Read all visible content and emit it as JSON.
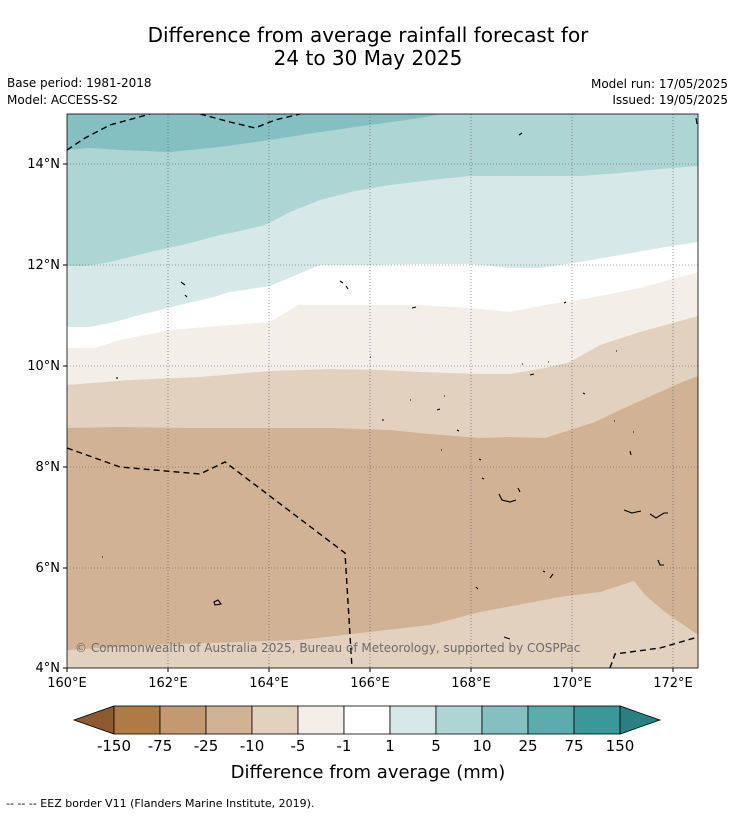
{
  "title": {
    "line1": "Difference from average rainfall forecast for",
    "line2": "24 to 30 May 2025"
  },
  "meta": {
    "base_period": "Base period: 1981-2018",
    "model": "Model: ACCESS-S2",
    "model_run": "Model run: 17/05/2025",
    "issued": "Issued: 19/05/2025"
  },
  "map": {
    "lon_ticks": [
      "160°E",
      "162°E",
      "164°E",
      "166°E",
      "168°E",
      "170°E",
      "172°E"
    ],
    "lat_ticks": [
      "14°N",
      "12°N",
      "10°N",
      "8°N",
      "6°N",
      "4°N"
    ],
    "credit": "© Commonwealth of Australia 2025, Bureau of Meteorology, supported by COSPPac"
  },
  "colorbar": {
    "labels": [
      "-150",
      "-75",
      "-25",
      "-10",
      "-5",
      "-1",
      "1",
      "5",
      "10",
      "25",
      "75",
      "150"
    ],
    "colors": [
      "#8c5a2e",
      "#b07a44",
      "#c39a70",
      "#d2b294",
      "#e3d1c0",
      "#f4eee9",
      "#ffffff",
      "#d6e8e7",
      "#acd5d4",
      "#84c0c1",
      "#5aacad",
      "#3a9898",
      "#2a7f80"
    ],
    "title": "Difference from average (mm)"
  },
  "footer": {
    "legend": "--  --  -- EEZ border V11 (Flanders Marine Institute, 2019)."
  }
}
